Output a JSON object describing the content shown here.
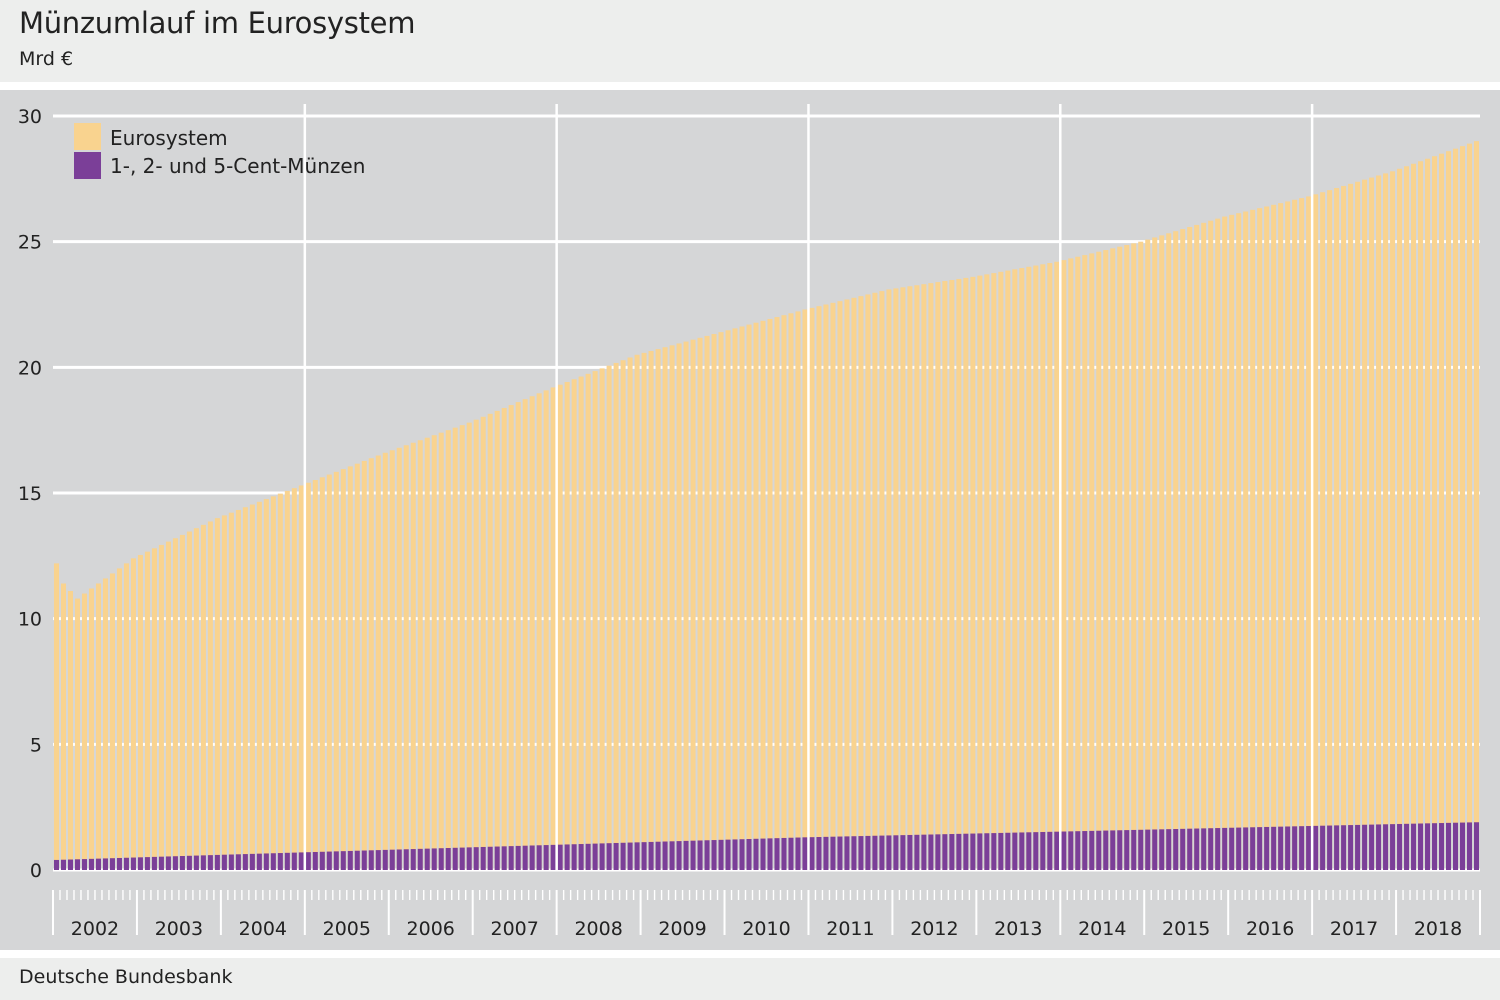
{
  "header": {
    "title": "Münzumlauf im Eurosystem",
    "subtitle": "Mrd €"
  },
  "footer": {
    "source": "Deutsche Bundesbank"
  },
  "chart_data": {
    "type": "bar",
    "title": "Münzumlauf im Eurosystem",
    "unit": "Mrd €",
    "ylim": [
      0,
      30
    ],
    "yticks": [
      0,
      5,
      10,
      15,
      20,
      25,
      30
    ],
    "grid": true,
    "legend_position": "top-left",
    "x_start": "2002-01",
    "years": [
      "2002",
      "2003",
      "2004",
      "2005",
      "2006",
      "2007",
      "2008",
      "2009",
      "2010",
      "2011",
      "2012",
      "2013",
      "2014",
      "2015",
      "2016",
      "2017",
      "2018"
    ],
    "colors": {
      "eurosystem": "#f9d38f",
      "cents": "#7b3f98"
    },
    "series": [
      {
        "name": "Eurosystem",
        "anchors": [
          [
            "2002-01",
            12.2
          ],
          [
            "2002-02",
            11.4
          ],
          [
            "2002-04",
            10.8
          ],
          [
            "2002-12",
            12.4
          ],
          [
            "2003-12",
            14.0
          ],
          [
            "2004-12",
            15.3
          ],
          [
            "2005-12",
            16.6
          ],
          [
            "2006-12",
            17.8
          ],
          [
            "2007-12",
            19.2
          ],
          [
            "2008-12",
            20.5
          ],
          [
            "2009-12",
            21.4
          ],
          [
            "2010-12",
            22.3
          ],
          [
            "2011-12",
            23.1
          ],
          [
            "2012-12",
            23.6
          ],
          [
            "2013-12",
            24.2
          ],
          [
            "2014-12",
            25.0
          ],
          [
            "2015-12",
            26.0
          ],
          [
            "2016-12",
            26.8
          ],
          [
            "2017-12",
            27.8
          ],
          [
            "2018-12",
            29.0
          ]
        ]
      },
      {
        "name": "1-, 2- und 5-Cent-Münzen",
        "anchors": [
          [
            "2002-01",
            0.4
          ],
          [
            "2003-12",
            0.6
          ],
          [
            "2006-12",
            0.9
          ],
          [
            "2010-12",
            1.3
          ],
          [
            "2014-12",
            1.6
          ],
          [
            "2018-12",
            1.9
          ]
        ]
      }
    ]
  }
}
